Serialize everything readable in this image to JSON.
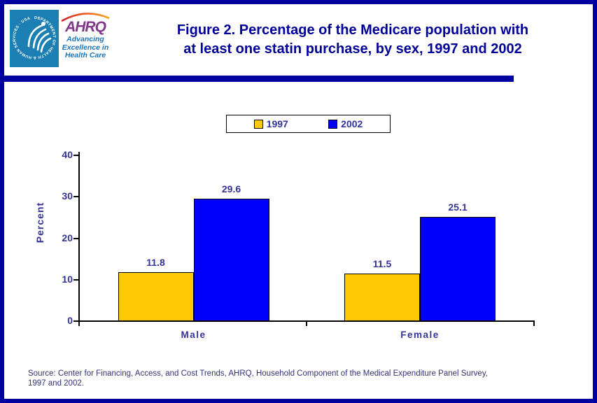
{
  "header": {
    "logo": {
      "seal_text": "DEPARTMENT OF HEALTH & HUMAN SERVICES · USA",
      "acronym": "AHRQ",
      "tagline_line1": "Advancing",
      "tagline_line2": "Excellence in",
      "tagline_line3": "Health Care"
    },
    "title_line1": "Figure 2. Percentage of the Medicare population with",
    "title_line2": "at least one statin purchase, by sex, 1997 and 2002"
  },
  "chart_data": {
    "type": "bar",
    "title": "Figure 2. Percentage of the Medicare population with at least one statin purchase, by sex, 1997 and 2002",
    "categories": [
      "Male",
      "Female"
    ],
    "series": [
      {
        "name": "1997",
        "values": [
          11.8,
          11.5
        ],
        "color": "#FFC908",
        "pattern": "dots"
      },
      {
        "name": "2002",
        "values": [
          29.6,
          25.1
        ],
        "color": "#0000FB",
        "pattern": "solid"
      }
    ],
    "xlabel": "",
    "ylabel": "Percent",
    "ylim": [
      0,
      40
    ],
    "yticks": [
      0,
      10,
      20,
      30,
      40
    ],
    "grid": false,
    "legend_position": "top-center",
    "value_labels": true
  },
  "source": {
    "line1": "Source: Center for Financing, Access, and Cost Trends, AHRQ, Household Component of the Medical Expenditure Panel Survey,",
    "line2": "1997 and 2002."
  },
  "colors": {
    "page_border": "#0000A0",
    "title_text": "#000099",
    "chart_text": "#333399",
    "source_text": "#333377",
    "bar_1997": "#FFC908",
    "bar_1997_dot": "#E0951E",
    "bar_2002": "#0000FB",
    "hhs_seal_blue": "#1B7FB4",
    "ahrq_purple": "#82368C",
    "ahrq_tagline_blue": "#1B75BB",
    "axis_line": "#000000"
  }
}
